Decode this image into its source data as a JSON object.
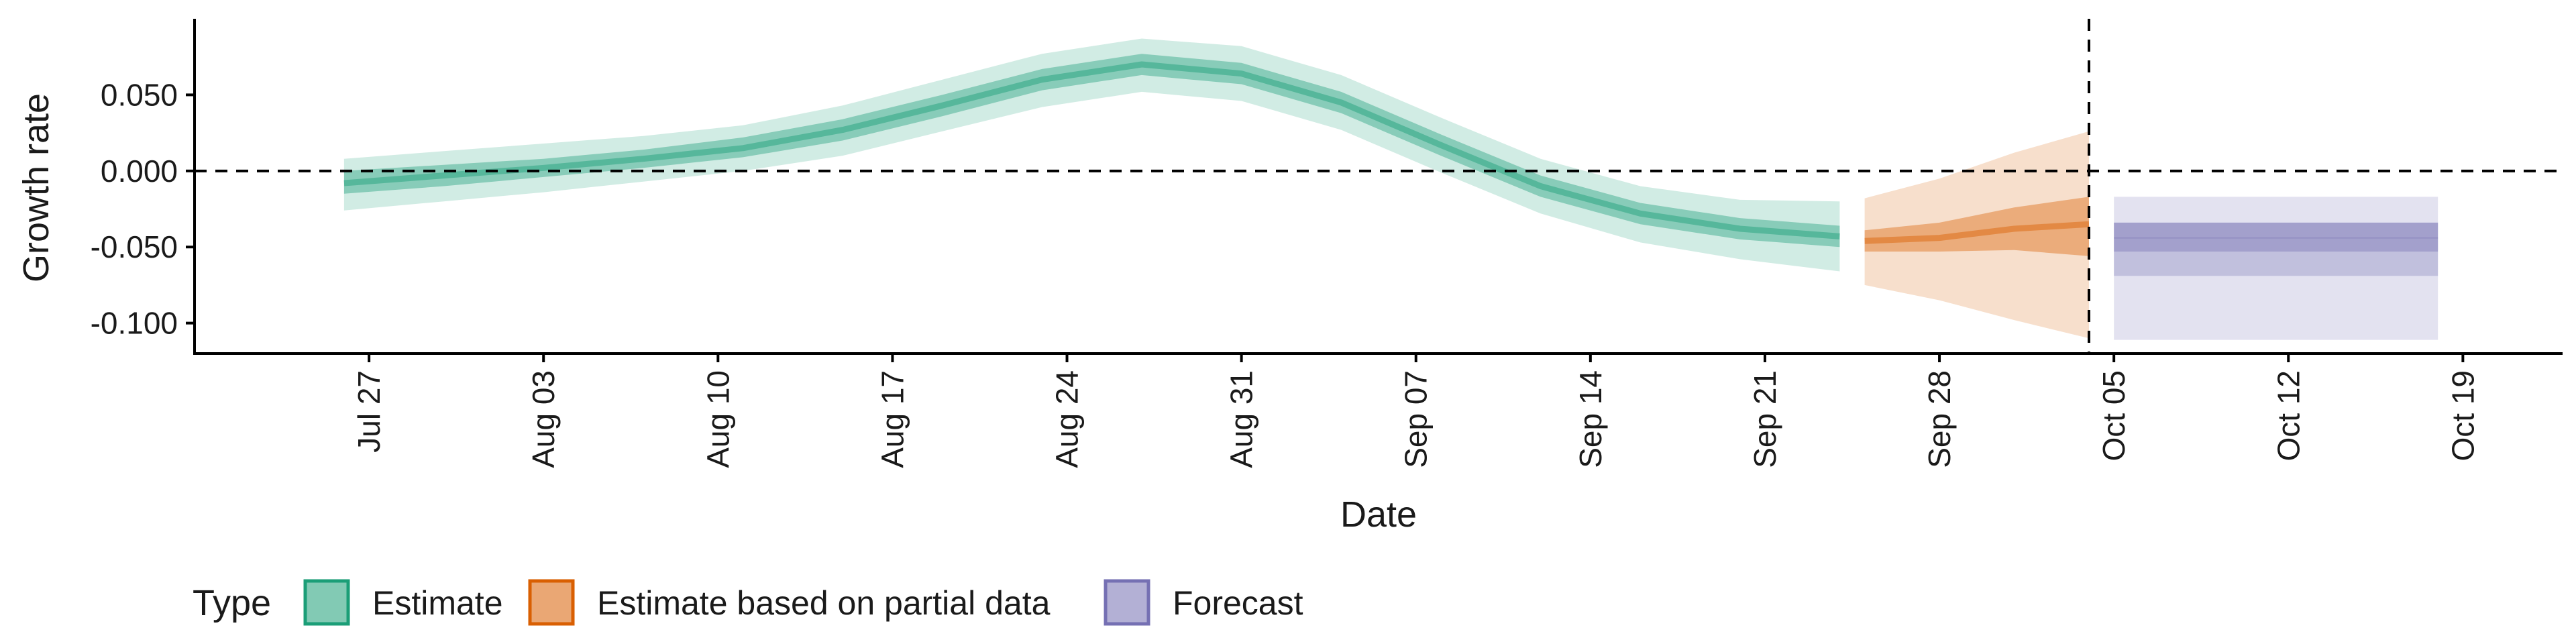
{
  "chart_data": {
    "type": "area",
    "xlabel": "Date",
    "ylabel": "Growth rate",
    "xlim": [
      "2020-07-20",
      "2020-10-23"
    ],
    "ylim": [
      -0.12,
      0.1
    ],
    "x_ticks": [
      "2020-07-27",
      "2020-08-03",
      "2020-08-10",
      "2020-08-17",
      "2020-08-24",
      "2020-08-31",
      "2020-09-07",
      "2020-09-14",
      "2020-09-21",
      "2020-09-28",
      "2020-10-05",
      "2020-10-12",
      "2020-10-19"
    ],
    "x_tick_labels": [
      "Jul 27",
      "Aug 03",
      "Aug 10",
      "Aug 17",
      "Aug 24",
      "Aug 31",
      "Sep 07",
      "Sep 14",
      "Sep 21",
      "Sep 28",
      "Oct 05",
      "Oct 12",
      "Oct 19"
    ],
    "y_ticks": [
      0.05,
      0.0,
      -0.05,
      -0.1
    ],
    "y_tick_labels": [
      "0.050",
      "0.000",
      "-0.050",
      "-0.100"
    ],
    "hline": 0.0,
    "vline": "2020-10-04",
    "grid": false,
    "legend": {
      "title": "Type",
      "position": "bottom-left",
      "entries": [
        "Estimate",
        "Estimate based on partial data",
        "Forecast"
      ]
    },
    "series": [
      {
        "name": "Estimate",
        "color": "#1b9e77",
        "points": [
          [
            "2020-07-26",
            -0.008,
            -0.015,
            0.0,
            -0.026,
            0.008
          ],
          [
            "2020-07-30",
            -0.003,
            -0.01,
            0.004,
            -0.02,
            0.013
          ],
          [
            "2020-08-03",
            0.002,
            -0.004,
            0.008,
            -0.014,
            0.018
          ],
          [
            "2020-08-07",
            0.008,
            0.002,
            0.014,
            -0.007,
            0.023
          ],
          [
            "2020-08-11",
            0.015,
            0.009,
            0.022,
            0.0,
            0.03
          ],
          [
            "2020-08-15",
            0.027,
            0.02,
            0.034,
            0.01,
            0.043
          ],
          [
            "2020-08-19",
            0.043,
            0.036,
            0.05,
            0.026,
            0.06
          ],
          [
            "2020-08-23",
            0.06,
            0.053,
            0.067,
            0.042,
            0.077
          ],
          [
            "2020-08-27",
            0.07,
            0.063,
            0.077,
            0.052,
            0.087
          ],
          [
            "2020-08-31",
            0.064,
            0.057,
            0.071,
            0.046,
            0.082
          ],
          [
            "2020-09-04",
            0.045,
            0.038,
            0.052,
            0.027,
            0.063
          ],
          [
            "2020-09-08",
            0.017,
            0.01,
            0.024,
            -0.001,
            0.035
          ],
          [
            "2020-09-12",
            -0.01,
            -0.017,
            -0.003,
            -0.028,
            0.008
          ],
          [
            "2020-09-16",
            -0.028,
            -0.035,
            -0.021,
            -0.047,
            -0.01
          ],
          [
            "2020-09-20",
            -0.038,
            -0.045,
            -0.031,
            -0.058,
            -0.019
          ],
          [
            "2020-09-24",
            -0.043,
            -0.05,
            -0.036,
            -0.066,
            -0.02
          ]
        ]
      },
      {
        "name": "Estimate based on partial data",
        "color": "#d95f02",
        "points": [
          [
            "2020-09-25",
            -0.046,
            -0.053,
            -0.039,
            -0.075,
            -0.018
          ],
          [
            "2020-09-28",
            -0.044,
            -0.053,
            -0.034,
            -0.085,
            -0.005
          ],
          [
            "2020-10-01",
            -0.038,
            -0.052,
            -0.024,
            -0.098,
            0.012
          ],
          [
            "2020-10-04",
            -0.035,
            -0.056,
            -0.017,
            -0.11,
            0.026
          ]
        ]
      },
      {
        "name": "Forecast",
        "color": "#7570b3",
        "points": [
          [
            "2020-10-05",
            -0.044,
            -0.053,
            -0.034,
            -0.069,
            -0.017,
            -0.111,
            0.027
          ],
          [
            "2020-10-18",
            -0.044,
            -0.053,
            -0.034,
            -0.069,
            -0.017,
            -0.111,
            0.027
          ]
        ]
      }
    ]
  }
}
